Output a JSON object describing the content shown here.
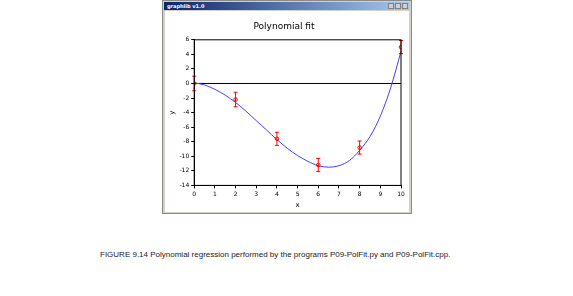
{
  "chart_data": {
    "type": "scatter",
    "window_title": "graphlib v1.0",
    "title": "Polynomial fit",
    "caption": "FIGURE 9.14 Polynomial regression performed by the programs P09-PolFit.py and P09-PolFit.cpp.",
    "x_label": "x",
    "y_label": "y",
    "xlim": [
      0,
      10
    ],
    "xticks": [
      0,
      1,
      2,
      3,
      4,
      5,
      6,
      7,
      8,
      9,
      10
    ],
    "ylim": [
      -14,
      6
    ],
    "yticks": [
      -14,
      -12,
      -10,
      -8,
      -6,
      -4,
      -2,
      0,
      2,
      4,
      6
    ],
    "grid": false,
    "hlines": [
      0
    ],
    "series": [
      {
        "type": "scatter",
        "color": "#ff0000",
        "marker": "circle",
        "x": [
          0,
          2,
          4,
          6,
          8,
          10
        ],
        "values": [
          0,
          -2.2,
          -7.6,
          -11.2,
          -8.8,
          5
        ],
        "errors": [
          1,
          1,
          0.9,
          0.9,
          0.9,
          0.9
        ]
      },
      {
        "type": "line",
        "color": "#4040ff",
        "line_style": "solid",
        "x": [
          0,
          0.5,
          1,
          1.5,
          2,
          2.5,
          3,
          3.5,
          4,
          4.5,
          5,
          5.5,
          6,
          6.5,
          7,
          7.5,
          8,
          8.5,
          9,
          9.5,
          10
        ],
        "values": [
          0.1,
          -0.2,
          -0.8,
          -1.6,
          -2.6,
          -3.8,
          -5.1,
          -6.4,
          -7.7,
          -8.9,
          -9.9,
          -10.7,
          -11.3,
          -11.5,
          -11.3,
          -10.6,
          -9.2,
          -7.3,
          -4.5,
          -0.6,
          4.4
        ]
      }
    ]
  }
}
